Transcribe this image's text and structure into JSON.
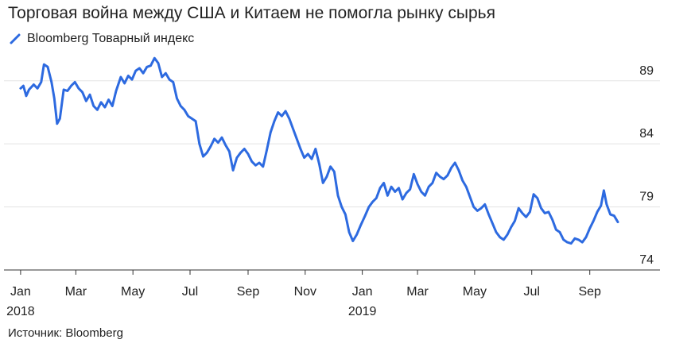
{
  "chart_data": {
    "type": "line",
    "title": "Торговая война между США и Китаем не помогла рынку сырья",
    "series": [
      {
        "name": "Bloomberg Товарный индекс",
        "color": "#2d6ae0",
        "points": [
          [
            "2018-01-01",
            88.4
          ],
          [
            "2018-01-04",
            88.6
          ],
          [
            "2018-01-07",
            87.8
          ],
          [
            "2018-01-10",
            88.3
          ],
          [
            "2018-01-15",
            88.7
          ],
          [
            "2018-01-19",
            88.4
          ],
          [
            "2018-01-23",
            88.9
          ],
          [
            "2018-01-26",
            90.3
          ],
          [
            "2018-01-30",
            90.1
          ],
          [
            "2018-02-03",
            88.9
          ],
          [
            "2018-02-06",
            87.6
          ],
          [
            "2018-02-09",
            85.6
          ],
          [
            "2018-02-12",
            86.0
          ],
          [
            "2018-02-16",
            88.3
          ],
          [
            "2018-02-20",
            88.2
          ],
          [
            "2018-02-24",
            88.6
          ],
          [
            "2018-02-28",
            88.9
          ],
          [
            "2018-03-04",
            88.4
          ],
          [
            "2018-03-08",
            88.1
          ],
          [
            "2018-03-12",
            87.4
          ],
          [
            "2018-03-16",
            87.9
          ],
          [
            "2018-03-20",
            87.0
          ],
          [
            "2018-03-24",
            86.7
          ],
          [
            "2018-03-28",
            87.3
          ],
          [
            "2018-04-01",
            86.9
          ],
          [
            "2018-04-05",
            87.5
          ],
          [
            "2018-04-09",
            87.0
          ],
          [
            "2018-04-13",
            88.2
          ],
          [
            "2018-04-18",
            89.3
          ],
          [
            "2018-04-22",
            88.8
          ],
          [
            "2018-04-26",
            89.4
          ],
          [
            "2018-04-30",
            89.1
          ],
          [
            "2018-05-04",
            89.8
          ],
          [
            "2018-05-08",
            90.0
          ],
          [
            "2018-05-12",
            89.6
          ],
          [
            "2018-05-16",
            90.1
          ],
          [
            "2018-05-20",
            90.2
          ],
          [
            "2018-05-24",
            90.8
          ],
          [
            "2018-05-28",
            90.4
          ],
          [
            "2018-06-01",
            89.3
          ],
          [
            "2018-06-05",
            89.6
          ],
          [
            "2018-06-09",
            89.1
          ],
          [
            "2018-06-13",
            88.9
          ],
          [
            "2018-06-17",
            87.6
          ],
          [
            "2018-06-21",
            87.0
          ],
          [
            "2018-06-25",
            86.7
          ],
          [
            "2018-06-29",
            86.2
          ],
          [
            "2018-07-03",
            86.0
          ],
          [
            "2018-07-07",
            85.8
          ],
          [
            "2018-07-11",
            84.0
          ],
          [
            "2018-07-15",
            83.0
          ],
          [
            "2018-07-19",
            83.3
          ],
          [
            "2018-07-23",
            83.8
          ],
          [
            "2018-07-27",
            84.4
          ],
          [
            "2018-07-31",
            84.1
          ],
          [
            "2018-08-04",
            84.5
          ],
          [
            "2018-08-08",
            83.9
          ],
          [
            "2018-08-12",
            83.4
          ],
          [
            "2018-08-16",
            81.9
          ],
          [
            "2018-08-20",
            82.9
          ],
          [
            "2018-08-24",
            83.3
          ],
          [
            "2018-08-28",
            83.6
          ],
          [
            "2018-09-01",
            83.2
          ],
          [
            "2018-09-05",
            82.6
          ],
          [
            "2018-09-09",
            82.3
          ],
          [
            "2018-09-13",
            82.5
          ],
          [
            "2018-09-17",
            82.2
          ],
          [
            "2018-09-21",
            83.5
          ],
          [
            "2018-09-25",
            84.9
          ],
          [
            "2018-09-29",
            85.8
          ],
          [
            "2018-10-03",
            86.5
          ],
          [
            "2018-10-07",
            86.2
          ],
          [
            "2018-10-11",
            86.6
          ],
          [
            "2018-10-15",
            86.0
          ],
          [
            "2018-10-19",
            85.2
          ],
          [
            "2018-10-23",
            84.4
          ],
          [
            "2018-10-27",
            83.6
          ],
          [
            "2018-10-31",
            82.9
          ],
          [
            "2018-11-04",
            83.2
          ],
          [
            "2018-11-08",
            82.8
          ],
          [
            "2018-11-12",
            83.6
          ],
          [
            "2018-11-16",
            82.4
          ],
          [
            "2018-11-20",
            80.9
          ],
          [
            "2018-11-24",
            81.4
          ],
          [
            "2018-11-28",
            82.2
          ],
          [
            "2018-12-02",
            81.8
          ],
          [
            "2018-12-06",
            79.9
          ],
          [
            "2018-12-10",
            79.0
          ],
          [
            "2018-12-14",
            78.4
          ],
          [
            "2018-12-18",
            77.0
          ],
          [
            "2018-12-22",
            76.3
          ],
          [
            "2018-12-26",
            76.8
          ],
          [
            "2018-12-30",
            77.5
          ],
          [
            "2019-01-04",
            78.3
          ],
          [
            "2019-01-08",
            79.0
          ],
          [
            "2019-01-12",
            79.4
          ],
          [
            "2019-01-16",
            79.7
          ],
          [
            "2019-01-20",
            80.5
          ],
          [
            "2019-01-24",
            80.9
          ],
          [
            "2019-01-28",
            79.9
          ],
          [
            "2019-02-01",
            80.6
          ],
          [
            "2019-02-05",
            80.2
          ],
          [
            "2019-02-09",
            80.5
          ],
          [
            "2019-02-13",
            79.6
          ],
          [
            "2019-02-17",
            80.1
          ],
          [
            "2019-02-21",
            80.4
          ],
          [
            "2019-02-25",
            81.6
          ],
          [
            "2019-03-01",
            80.8
          ],
          [
            "2019-03-05",
            80.2
          ],
          [
            "2019-03-09",
            79.9
          ],
          [
            "2019-03-13",
            80.6
          ],
          [
            "2019-03-17",
            80.9
          ],
          [
            "2019-03-21",
            81.7
          ],
          [
            "2019-03-25",
            81.4
          ],
          [
            "2019-03-29",
            81.2
          ],
          [
            "2019-04-02",
            81.5
          ],
          [
            "2019-04-06",
            82.1
          ],
          [
            "2019-04-10",
            82.5
          ],
          [
            "2019-04-14",
            81.9
          ],
          [
            "2019-04-18",
            81.1
          ],
          [
            "2019-04-22",
            80.6
          ],
          [
            "2019-04-26",
            79.8
          ],
          [
            "2019-04-30",
            79.0
          ],
          [
            "2019-05-04",
            78.7
          ],
          [
            "2019-05-08",
            78.9
          ],
          [
            "2019-05-12",
            79.2
          ],
          [
            "2019-05-16",
            78.4
          ],
          [
            "2019-05-20",
            77.7
          ],
          [
            "2019-05-24",
            77.0
          ],
          [
            "2019-05-28",
            76.6
          ],
          [
            "2019-06-01",
            76.4
          ],
          [
            "2019-06-05",
            76.8
          ],
          [
            "2019-06-09",
            77.4
          ],
          [
            "2019-06-13",
            77.9
          ],
          [
            "2019-06-17",
            78.9
          ],
          [
            "2019-06-21",
            78.5
          ],
          [
            "2019-06-25",
            78.2
          ],
          [
            "2019-06-29",
            78.6
          ],
          [
            "2019-07-03",
            80.0
          ],
          [
            "2019-07-07",
            79.7
          ],
          [
            "2019-07-11",
            78.9
          ],
          [
            "2019-07-15",
            78.5
          ],
          [
            "2019-07-19",
            78.6
          ],
          [
            "2019-07-23",
            78.0
          ],
          [
            "2019-07-27",
            77.2
          ],
          [
            "2019-07-31",
            77.0
          ],
          [
            "2019-08-04",
            76.4
          ],
          [
            "2019-08-08",
            76.2
          ],
          [
            "2019-08-12",
            76.1
          ],
          [
            "2019-08-16",
            76.5
          ],
          [
            "2019-08-20",
            76.4
          ],
          [
            "2019-08-24",
            76.2
          ],
          [
            "2019-08-28",
            76.6
          ],
          [
            "2019-09-01",
            77.3
          ],
          [
            "2019-09-05",
            77.9
          ],
          [
            "2019-09-09",
            78.6
          ],
          [
            "2019-09-13",
            79.1
          ],
          [
            "2019-09-16",
            80.3
          ],
          [
            "2019-09-19",
            79.2
          ],
          [
            "2019-09-23",
            78.4
          ],
          [
            "2019-09-27",
            78.3
          ],
          [
            "2019-10-01",
            77.8
          ]
        ]
      }
    ],
    "x_ticks": [
      {
        "date": "2018-01-01",
        "label": "Jan",
        "sublabel": "2018"
      },
      {
        "date": "2018-03-01",
        "label": "Mar",
        "sublabel": ""
      },
      {
        "date": "2018-05-01",
        "label": "May",
        "sublabel": ""
      },
      {
        "date": "2018-07-01",
        "label": "Jul",
        "sublabel": ""
      },
      {
        "date": "2018-09-01",
        "label": "Sep",
        "sublabel": ""
      },
      {
        "date": "2018-11-01",
        "label": "Nov",
        "sublabel": ""
      },
      {
        "date": "2019-01-01",
        "label": "Jan",
        "sublabel": "2019"
      },
      {
        "date": "2019-03-01",
        "label": "Mar",
        "sublabel": ""
      },
      {
        "date": "2019-05-01",
        "label": "May",
        "sublabel": ""
      },
      {
        "date": "2019-07-01",
        "label": "Jul",
        "sublabel": ""
      },
      {
        "date": "2019-09-01",
        "label": "Sep",
        "sublabel": ""
      }
    ],
    "y_ticks": [
      74,
      79,
      84,
      89
    ],
    "ylim": [
      74,
      91
    ],
    "xlim": [
      "2017-12-10",
      "2019-11-15"
    ],
    "grid": true,
    "legend_position": "top-left"
  },
  "source_text": "Источник: Bloomberg"
}
